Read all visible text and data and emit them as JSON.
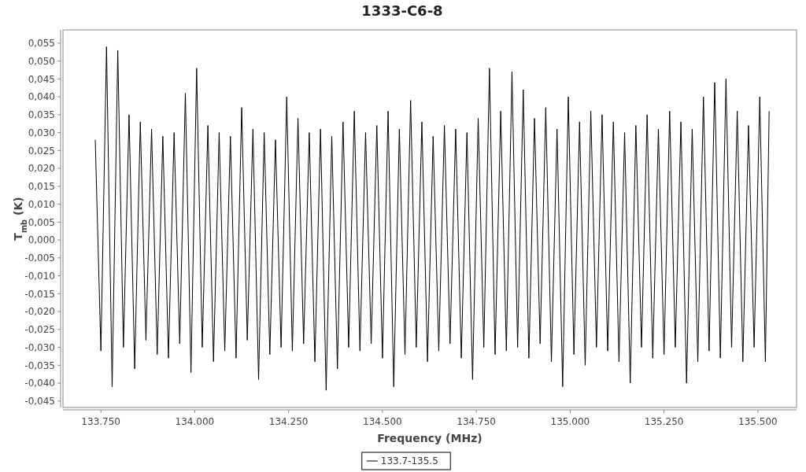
{
  "chart_data": {
    "type": "line",
    "title": "1333-C6-8",
    "xlabel": "Frequency (MHz)",
    "ylabel": "T$_{mb}$ (K)",
    "xlim": [
      133649,
      135603
    ],
    "xticks": [
      {
        "value": 133750,
        "label": "133.750"
      },
      {
        "value": 134000,
        "label": "134.000"
      },
      {
        "value": 134250,
        "label": "134.250"
      },
      {
        "value": 134500,
        "label": "134.500"
      },
      {
        "value": 134750,
        "label": "134.750"
      },
      {
        "value": 135000,
        "label": "135.000"
      },
      {
        "value": 135250,
        "label": "135.250"
      },
      {
        "value": 135500,
        "label": "135.500"
      }
    ],
    "ylim": [
      -0.0468,
      0.0587
    ],
    "yticks": [
      {
        "value": -0.045,
        "label": "-0,045"
      },
      {
        "value": -0.04,
        "label": "-0,040"
      },
      {
        "value": -0.035,
        "label": "-0,035"
      },
      {
        "value": -0.03,
        "label": "-0,030"
      },
      {
        "value": -0.025,
        "label": "-0,025"
      },
      {
        "value": -0.02,
        "label": "-0,020"
      },
      {
        "value": -0.015,
        "label": "-0,015"
      },
      {
        "value": -0.01,
        "label": "-0,010"
      },
      {
        "value": -0.005,
        "label": "-0,005"
      },
      {
        "value": 0,
        "label": "0,000"
      },
      {
        "value": 0.005,
        "label": "0,005"
      },
      {
        "value": 0.01,
        "label": "0,010"
      },
      {
        "value": 0.015,
        "label": "0,015"
      },
      {
        "value": 0.02,
        "label": "0,020"
      },
      {
        "value": 0.025,
        "label": "0,025"
      },
      {
        "value": 0.03,
        "label": "0,030"
      },
      {
        "value": 0.035,
        "label": "0,035"
      },
      {
        "value": 0.04,
        "label": "0,040"
      },
      {
        "value": 0.045,
        "label": "0,045"
      },
      {
        "value": 0.05,
        "label": "0,050"
      },
      {
        "value": 0.055,
        "label": "0,055"
      }
    ],
    "grid": false,
    "legend": "bottom",
    "marker": "none",
    "line_style": "solid",
    "series": [
      {
        "name": "133.7-135.5",
        "color": "#000000",
        "x": [
          133735,
          133750,
          133765,
          133780,
          133795,
          133810,
          133825,
          133840,
          133855,
          133870,
          133885,
          133900,
          133915,
          133930,
          133945,
          133960,
          133975,
          133990,
          134005,
          134020,
          134035,
          134050,
          134065,
          134080,
          134095,
          134110,
          134125,
          134140,
          134155,
          134170,
          134185,
          134200,
          134215,
          134230,
          134245,
          134260,
          134275,
          134290,
          134305,
          134320,
          134335,
          134350,
          134365,
          134380,
          134395,
          134410,
          134425,
          134440,
          134455,
          134470,
          134485,
          134500,
          134515,
          134530,
          134545,
          134560,
          134575,
          134590,
          134605,
          134620,
          134635,
          134650,
          134665,
          134680,
          134695,
          134710,
          134725,
          134740,
          134755,
          134770,
          134785,
          134800,
          134815,
          134830,
          134845,
          134860,
          134875,
          134890,
          134905,
          134920,
          134935,
          134950,
          134965,
          134980,
          134995,
          135010,
          135025,
          135040,
          135055,
          135070,
          135085,
          135100,
          135115,
          135130,
          135145,
          135160,
          135175,
          135190,
          135205,
          135220,
          135235,
          135250,
          135265,
          135280,
          135295,
          135310,
          135325,
          135340,
          135355,
          135370,
          135385,
          135400,
          135415,
          135430,
          135445,
          135460,
          135475,
          135490,
          135505,
          135520,
          135530
        ],
        "values": [
          0.028,
          -0.031,
          0.054,
          -0.041,
          0.053,
          -0.03,
          0.035,
          -0.036,
          0.033,
          -0.028,
          0.031,
          -0.032,
          0.029,
          -0.033,
          0.03,
          -0.029,
          0.041,
          -0.037,
          0.048,
          -0.03,
          0.032,
          -0.034,
          0.03,
          -0.031,
          0.029,
          -0.033,
          0.037,
          -0.028,
          0.031,
          -0.039,
          0.03,
          -0.032,
          0.028,
          -0.03,
          0.04,
          -0.031,
          0.034,
          -0.029,
          0.03,
          -0.034,
          0.031,
          -0.042,
          0.029,
          -0.036,
          0.033,
          -0.03,
          0.036,
          -0.031,
          0.03,
          -0.029,
          0.032,
          -0.033,
          0.036,
          -0.041,
          0.031,
          -0.032,
          0.039,
          -0.03,
          0.033,
          -0.034,
          0.029,
          -0.031,
          0.032,
          -0.029,
          0.031,
          -0.033,
          0.03,
          -0.039,
          0.034,
          -0.03,
          0.048,
          -0.032,
          0.036,
          -0.031,
          0.047,
          -0.03,
          0.042,
          -0.033,
          0.034,
          -0.029,
          0.037,
          -0.034,
          0.031,
          -0.041,
          0.04,
          -0.032,
          0.033,
          -0.035,
          0.036,
          -0.03,
          0.035,
          -0.031,
          0.033,
          -0.034,
          0.03,
          -0.04,
          0.032,
          -0.03,
          0.035,
          -0.033,
          0.031,
          -0.032,
          0.036,
          -0.03,
          0.033,
          -0.04,
          0.031,
          -0.034,
          0.04,
          -0.031,
          0.044,
          -0.033,
          0.045,
          -0.03,
          0.036,
          -0.034,
          0.032,
          -0.03,
          0.04,
          -0.034,
          0.036
        ]
      }
    ]
  }
}
